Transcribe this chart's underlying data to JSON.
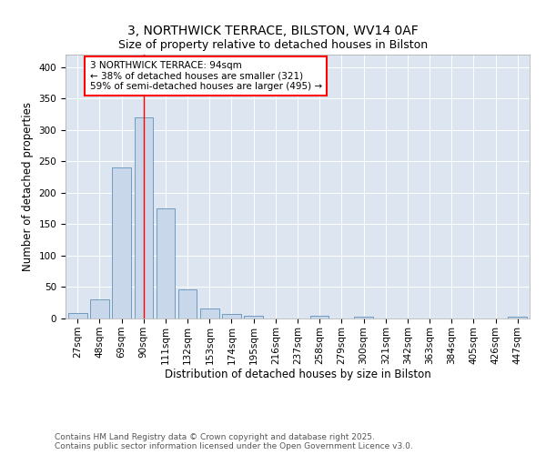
{
  "title": "3, NORTHWICK TERRACE, BILSTON, WV14 0AF",
  "subtitle": "Size of property relative to detached houses in Bilston",
  "xlabel": "Distribution of detached houses by size in Bilston",
  "ylabel": "Number of detached properties",
  "categories": [
    "27sqm",
    "48sqm",
    "69sqm",
    "90sqm",
    "111sqm",
    "132sqm",
    "153sqm",
    "174sqm",
    "195sqm",
    "216sqm",
    "237sqm",
    "258sqm",
    "279sqm",
    "300sqm",
    "321sqm",
    "342sqm",
    "363sqm",
    "384sqm",
    "405sqm",
    "426sqm",
    "447sqm"
  ],
  "values": [
    8,
    31,
    240,
    320,
    175,
    46,
    16,
    7,
    4,
    0,
    0,
    5,
    0,
    3,
    0,
    0,
    0,
    0,
    0,
    0,
    3
  ],
  "bar_color": "#c8d8ea",
  "bar_edge_color": "#6090b8",
  "red_line_index": 3,
  "annotation_text": "3 NORTHWICK TERRACE: 94sqm\n← 38% of detached houses are smaller (321)\n59% of semi-detached houses are larger (495) →",
  "annotation_box_color": "white",
  "annotation_box_edge_color": "red",
  "red_line_color": "red",
  "ylim": [
    0,
    420
  ],
  "yticks": [
    0,
    50,
    100,
    150,
    200,
    250,
    300,
    350,
    400
  ],
  "background_color": "#dde5f0",
  "footer_text": "Contains HM Land Registry data © Crown copyright and database right 2025.\nContains public sector information licensed under the Open Government Licence v3.0.",
  "title_fontsize": 10,
  "subtitle_fontsize": 9,
  "axis_label_fontsize": 8.5,
  "tick_fontsize": 7.5,
  "annotation_fontsize": 7.5,
  "footer_fontsize": 6.5
}
